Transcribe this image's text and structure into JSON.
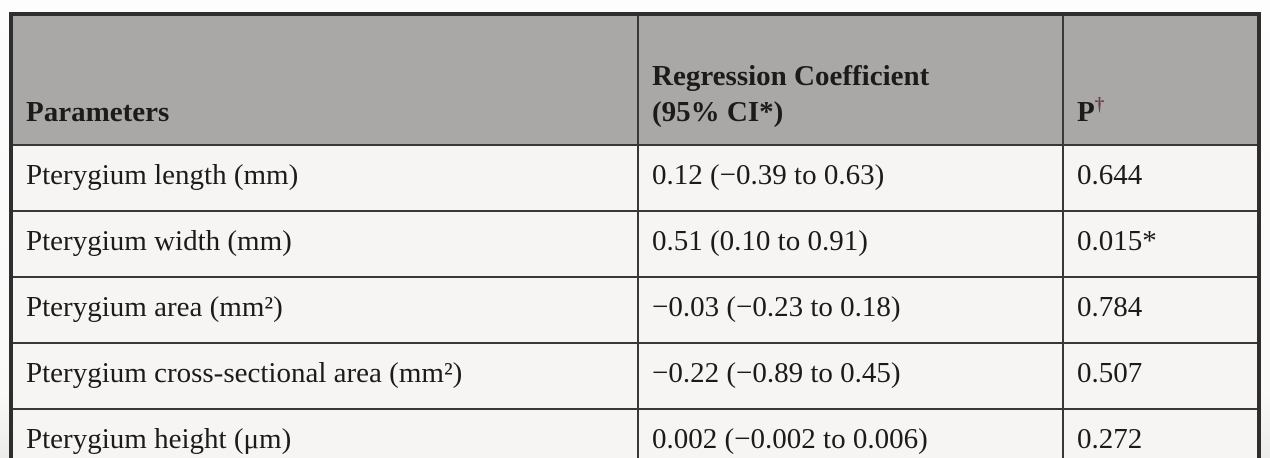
{
  "table": {
    "columns": [
      {
        "label": "Parameters"
      },
      {
        "label": "Regression Coefficient\n(95% CI*)"
      },
      {
        "label": "P",
        "sup": "†"
      }
    ],
    "rows": [
      {
        "parameter": "Pterygium length (mm)",
        "coefficient": "0.12 (−0.39 to 0.63)",
        "p": "0.644"
      },
      {
        "parameter": "Pterygium width (mm)",
        "coefficient": "0.51 (0.10 to 0.91)",
        "p": "0.015*"
      },
      {
        "parameter": "Pterygium area (mm²)",
        "coefficient": "−0.03 (−0.23 to 0.18)",
        "p": "0.784"
      },
      {
        "parameter": "Pterygium cross-sectional area (mm²)",
        "coefficient": "−0.22 (−0.89 to 0.45)",
        "p": "0.507"
      },
      {
        "parameter": "Pterygium height (μm)",
        "coefficient": "0.002 (−0.002 to 0.006)",
        "p": "0.272"
      }
    ]
  },
  "colors": {
    "header_background": "#a9a8a6",
    "body_background": "#f6f5f3",
    "border": "#383838",
    "text": "#1b1b1b",
    "dagger": "#6d3a4a"
  }
}
